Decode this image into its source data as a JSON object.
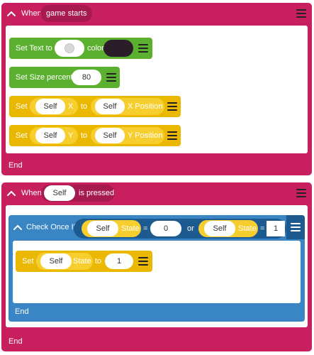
{
  "event1": {
    "when_label": "When",
    "trigger": "game starts",
    "end_label": "End",
    "set_text": {
      "label": "Set Text to",
      "color_label": "color",
      "swatch_color": "#2a1e28"
    },
    "set_size": {
      "label": "Set Size percent",
      "value": "80"
    },
    "set_x": {
      "set_label": "Set",
      "object": "Self",
      "axis": "X",
      "to_label": "to",
      "source": "Self",
      "property": "X Position"
    },
    "set_y": {
      "set_label": "Set",
      "object": "Self",
      "axis": "Y",
      "to_label": "to",
      "source": "Self",
      "property": "Y Position"
    }
  },
  "event2": {
    "when_label": "When",
    "object": "Self",
    "trigger": "is pressed",
    "end_label": "End",
    "check": {
      "label": "Check Once If",
      "left": {
        "object": "Self",
        "property": "State",
        "op": "=",
        "value": "0"
      },
      "join": "or",
      "right": {
        "object": "Self",
        "property": "State",
        "op": "=",
        "value": "1"
      },
      "end_label": "End",
      "set_state": {
        "set_label": "Set",
        "object": "Self",
        "property": "State",
        "to_label": "to",
        "value": "1"
      }
    }
  },
  "colors": {
    "event": "#c8205f",
    "green": "#5cb02f",
    "yellow": "#eab800",
    "blue": "#3a85c4",
    "dark_blue": "#1d5a8f"
  }
}
